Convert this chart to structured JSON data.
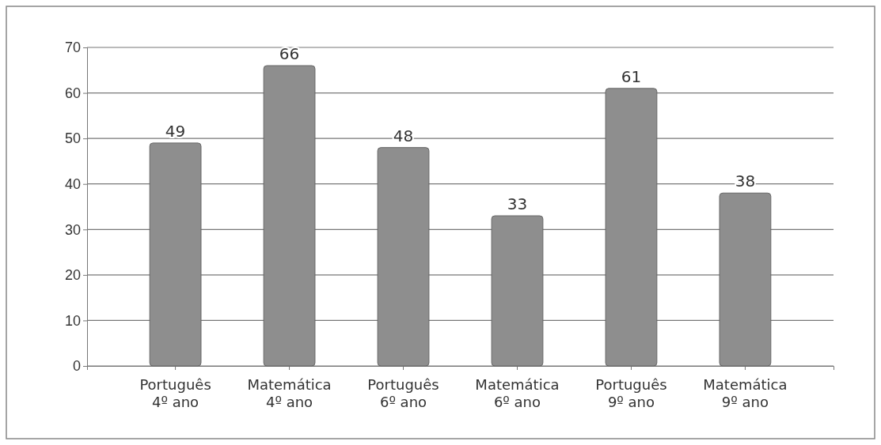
{
  "chart_data": {
    "type": "bar",
    "categories": [
      "Português\n4º ano",
      "Matemática\n4º ano",
      "Português\n6º ano",
      "Matemática\n6º ano",
      "Português\n9º ano",
      "Matemática\n9º ano"
    ],
    "values": [
      49,
      66,
      48,
      33,
      61,
      38
    ],
    "color": "#8e8e8e",
    "ylim": [
      0,
      70
    ],
    "yticks": [
      0,
      10,
      20,
      30,
      40,
      50,
      60,
      70
    ],
    "grid": "y",
    "data_labels": true
  }
}
